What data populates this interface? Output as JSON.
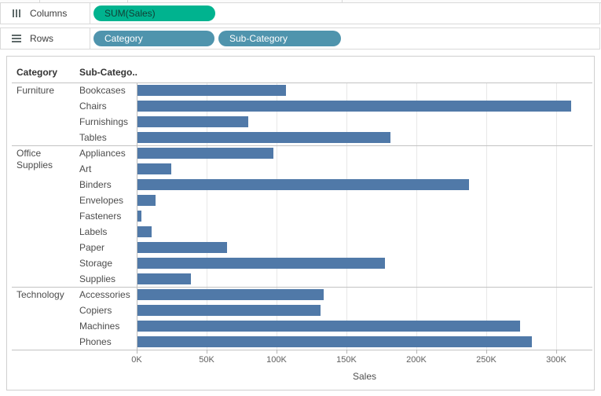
{
  "top_shelves": {
    "columns_label": "Columns",
    "rows_label": "Rows",
    "columns_pills": [
      {
        "label": "SUM(Sales)",
        "type": "measure",
        "color": "#00b38f",
        "text_color": "#113d33"
      }
    ],
    "rows_pills": [
      {
        "label": "Category",
        "type": "dimension",
        "color": "#4f94ad",
        "text_color": "#ffffff"
      },
      {
        "label": "Sub-Category",
        "type": "dimension",
        "color": "#4f94ad",
        "text_color": "#ffffff"
      }
    ]
  },
  "chart_data": {
    "type": "bar",
    "orientation": "horizontal",
    "title": "",
    "xlabel": "Sales",
    "ylabel": "",
    "row_headers": [
      "Category",
      "Sub-Catego.."
    ],
    "unit": "thousands (K)",
    "bar_color": "#5079a8",
    "grid": "vertical light-gray gridlines every 50K",
    "legend": "none",
    "axis": {
      "tick_labels": [
        "0K",
        "50K",
        "100K",
        "150K",
        "200K",
        "250K",
        "300K"
      ],
      "tick_values": [
        0,
        50,
        100,
        150,
        200,
        250,
        300
      ],
      "xlim": [
        0,
        326
      ]
    },
    "sections": [
      {
        "category": "Furniture",
        "rows": [
          {
            "label": "Bookcases",
            "value_k": 106
          },
          {
            "label": "Chairs",
            "value_k": 310
          },
          {
            "label": "Furnishings",
            "value_k": 79
          },
          {
            "label": "Tables",
            "value_k": 181
          }
        ]
      },
      {
        "category": "Office Supplies",
        "rows": [
          {
            "label": "Appliances",
            "value_k": 97
          },
          {
            "label": "Art",
            "value_k": 24
          },
          {
            "label": "Binders",
            "value_k": 237
          },
          {
            "label": "Envelopes",
            "value_k": 13
          },
          {
            "label": "Fasteners",
            "value_k": 3
          },
          {
            "label": "Labels",
            "value_k": 10
          },
          {
            "label": "Paper",
            "value_k": 64
          },
          {
            "label": "Storage",
            "value_k": 177
          },
          {
            "label": "Supplies",
            "value_k": 38
          }
        ]
      },
      {
        "category": "Technology",
        "rows": [
          {
            "label": "Accessories",
            "value_k": 133
          },
          {
            "label": "Copiers",
            "value_k": 131
          },
          {
            "label": "Machines",
            "value_k": 274
          },
          {
            "label": "Phones",
            "value_k": 282
          }
        ]
      }
    ]
  }
}
